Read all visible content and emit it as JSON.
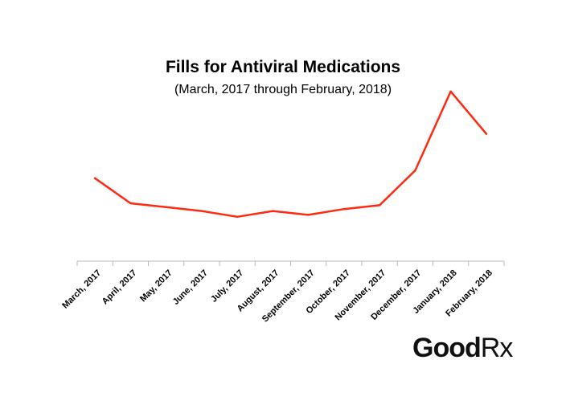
{
  "chart_data": {
    "type": "line",
    "title": "Fills for Antiviral Medications",
    "subtitle": "(March, 2017 through February, 2018)",
    "categories": [
      "March, 2017",
      "April, 2017",
      "May, 2017",
      "June, 2017",
      "July, 2017",
      "August, 2017",
      "September, 2017",
      "October, 2017",
      "November, 2017",
      "December, 2017",
      "January, 2018",
      "February, 2018"
    ],
    "series": [
      {
        "values": [
          43,
          30,
          28,
          26,
          23,
          26,
          24,
          27,
          29,
          47,
          88,
          66
        ],
        "color": "#ff2a10"
      }
    ],
    "ylim": [
      0,
      100
    ],
    "grid": false,
    "legend": "none"
  },
  "logo": {
    "main_text": "Good",
    "mark_text": "Rx"
  }
}
